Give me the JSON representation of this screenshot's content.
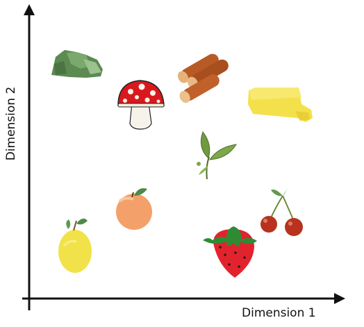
{
  "axes": {
    "x_label": "Dimension 1",
    "y_label": "Dimension 2"
  },
  "items": [
    {
      "name": "moss-covered-rock",
      "icon": "rock-icon"
    },
    {
      "name": "cinnamon-sticks",
      "icon": "cinnamon-icon"
    },
    {
      "name": "fly-agaric-mushroom",
      "icon": "mushroom-icon"
    },
    {
      "name": "butter",
      "icon": "butter-icon"
    },
    {
      "name": "tea-leaves",
      "icon": "tea-leaf-icon"
    },
    {
      "name": "peach",
      "icon": "peach-icon"
    },
    {
      "name": "cherries",
      "icon": "cherries-icon"
    },
    {
      "name": "lemon",
      "icon": "lemon-icon"
    },
    {
      "name": "strawberry",
      "icon": "strawberry-icon"
    }
  ],
  "colors": {
    "axis": "#111111",
    "rock": "#5b8a52",
    "cinnamon": "#b85a26",
    "mushroom_cap": "#d8181e",
    "butter": "#f4e04a",
    "leaf": "#6f9a3e",
    "peach": "#f3a06a",
    "cherry": "#b83220",
    "lemon": "#f2e24a",
    "strawberry": "#e2232e"
  }
}
